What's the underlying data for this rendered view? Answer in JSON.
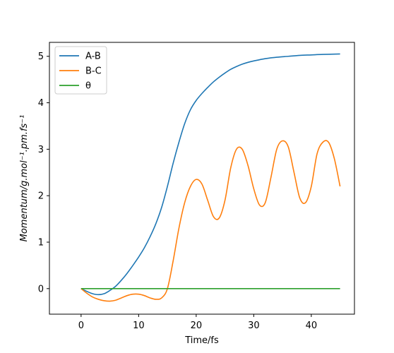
{
  "chart_data": {
    "type": "line",
    "xlabel": "Time/fs",
    "ylabel": "Momentum/g.mol⁻¹.pm.fs⁻¹",
    "xlim": [
      -5.5,
      47.5
    ],
    "ylim": [
      -0.55,
      5.3
    ],
    "xticks": [
      0,
      10,
      20,
      30,
      40
    ],
    "yticks": [
      0,
      1,
      2,
      3,
      4,
      5
    ],
    "grid": false,
    "legend_position": "top-left",
    "series": [
      {
        "name": "A-B",
        "color": "#1f77b4",
        "x": [
          0,
          1,
          2,
          3,
          4,
          5,
          6,
          7,
          8,
          9,
          10,
          11,
          12,
          13,
          14,
          15,
          16,
          17,
          18,
          19,
          20,
          21,
          22,
          23,
          24,
          25,
          26,
          27,
          28,
          29,
          30,
          32,
          34,
          36,
          38,
          40,
          42,
          45
        ],
        "y": [
          0,
          -0.06,
          -0.11,
          -0.13,
          -0.11,
          -0.04,
          0.05,
          0.18,
          0.33,
          0.5,
          0.68,
          0.88,
          1.12,
          1.4,
          1.75,
          2.2,
          2.7,
          3.15,
          3.55,
          3.85,
          4.05,
          4.2,
          4.33,
          4.45,
          4.55,
          4.64,
          4.72,
          4.78,
          4.83,
          4.87,
          4.9,
          4.95,
          4.98,
          5.0,
          5.02,
          5.03,
          5.04,
          5.05
        ]
      },
      {
        "name": "B-C",
        "color": "#ff7f0e",
        "x": [
          0,
          1,
          2,
          3,
          4,
          5,
          6,
          7,
          8,
          9,
          10,
          11,
          12,
          13,
          14,
          15,
          16,
          17,
          18,
          19,
          20,
          21,
          22,
          23,
          24,
          25,
          26,
          27,
          28,
          29,
          30,
          31,
          32,
          33,
          34,
          35,
          36,
          37,
          38,
          39,
          40,
          41,
          42,
          43,
          44,
          45
        ],
        "y": [
          0,
          -0.1,
          -0.18,
          -0.23,
          -0.26,
          -0.27,
          -0.25,
          -0.2,
          -0.15,
          -0.12,
          -0.12,
          -0.15,
          -0.2,
          -0.23,
          -0.2,
          0.0,
          0.6,
          1.3,
          1.85,
          2.2,
          2.35,
          2.25,
          1.9,
          1.55,
          1.52,
          1.9,
          2.6,
          3.0,
          3.0,
          2.65,
          2.15,
          1.8,
          1.85,
          2.4,
          3.0,
          3.18,
          3.05,
          2.5,
          1.95,
          1.85,
          2.2,
          2.9,
          3.15,
          3.15,
          2.8,
          2.2
        ]
      },
      {
        "name": "θ",
        "color": "#2ca02c",
        "x": [
          0,
          45
        ],
        "y": [
          0,
          0
        ]
      }
    ]
  }
}
